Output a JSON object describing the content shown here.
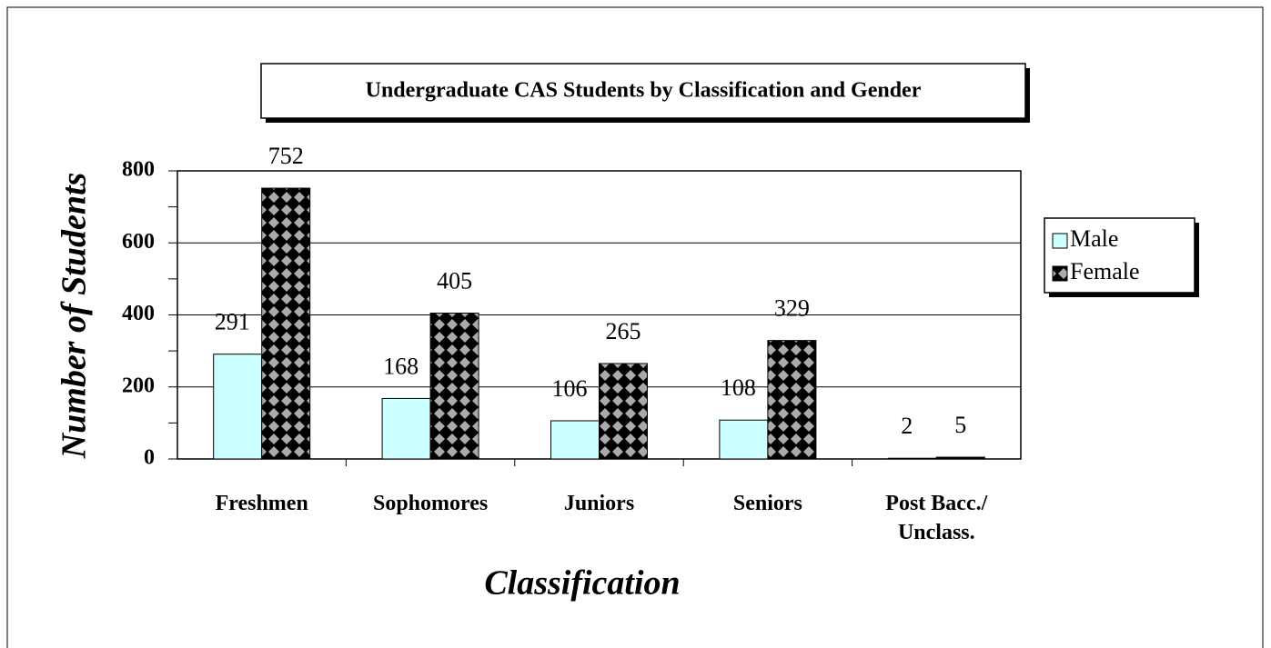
{
  "chart_data": {
    "type": "bar",
    "title": "Undergraduate CAS Students by Classification and Gender",
    "x_label": "Classification",
    "y_label": "Number of Students",
    "categories": [
      "Freshmen",
      "Sophomores",
      "Juniors",
      "Seniors",
      "Post Bacc./ Unclass."
    ],
    "series": [
      {
        "name": "Male",
        "color": "#ccffff",
        "values": [
          291,
          168,
          106,
          108,
          2
        ]
      },
      {
        "name": "Female",
        "color": "#000000",
        "values": [
          752,
          405,
          265,
          329,
          5
        ]
      }
    ],
    "ylim": [
      0,
      800
    ],
    "yticks": [
      0,
      200,
      400,
      600,
      800
    ],
    "grid": true,
    "legend": "right"
  }
}
